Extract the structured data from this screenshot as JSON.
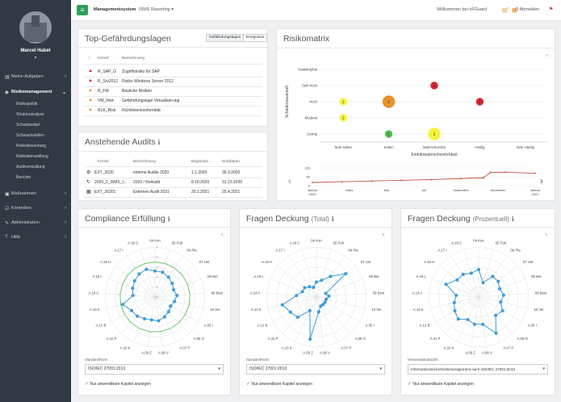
{
  "user": {
    "name": "Marcel Habel"
  },
  "nav": {
    "items": [
      {
        "label": "Meine Aufgaben",
        "icon": "inbox-icon"
      },
      {
        "label": "Risikomanagement",
        "icon": "shield-icon"
      },
      {
        "label": "Maßnahmen",
        "icon": "briefcase-icon"
      },
      {
        "label": "Kontrollen",
        "icon": "check-icon"
      },
      {
        "label": "Administration",
        "icon": "wrench-icon"
      },
      {
        "label": "Hilfe",
        "icon": "help-icon"
      }
    ],
    "sub": [
      "Risikopolitik",
      "Strukturanalyse",
      "Schutzbedarf",
      "Schwachstellen",
      "Risikobewertung",
      "Risikobehandlung",
      "Auditverwaltung",
      "Berichte"
    ]
  },
  "topbar": {
    "brand": "Managementsystem",
    "module": "ISMS Reporting",
    "welcome": "Willkommen bei riFGuard",
    "badge1": "8",
    "badge2": "1",
    "logout": "Abmelden"
  },
  "top_risks": {
    "title": "Top-Gefährdungslagen",
    "tabs": [
      "Gefährdungslagen",
      "Ereignisse"
    ],
    "col_short": "Kürzel",
    "col_name": "Bezeichnung",
    "rows": [
      {
        "short": "R_SAP_G",
        "name": "Zugriffsrisiko für SAP",
        "color": "#d9262b"
      },
      {
        "short": "R_Srv2012",
        "name": "Risiko Windows Server 2012",
        "color": "#d9262b"
      },
      {
        "short": "R_FM",
        "name": "Bauliche Risiken",
        "color": "#e8912a"
      },
      {
        "short": "VM_Risk",
        "name": "Gefährdungslage Virtualisierung",
        "color": "#e8912a"
      },
      {
        "short": "RLK_Risk",
        "name": "Richtlinienkonformität",
        "color": "#e8912a"
      }
    ]
  },
  "audits": {
    "title": "Anstehende Audits",
    "cols": [
      "Kürzel",
      "Bezeichnung",
      "Beginnda...",
      "Enddatum"
    ],
    "rows": [
      {
        "icon": "gears-icon",
        "short": "EXT_2020",
        "name": "externe Audits 2020",
        "start": "1.1.2020",
        "end": "30.3.2020"
      },
      {
        "icon": "refresh-icon",
        "short": "2020_2_ISMS_I...",
        "name": "2020 / ReAudit",
        "start": "8.10.2020",
        "end": "12.10.2020"
      },
      {
        "icon": "calendar-icon",
        "short": "EXT_20201",
        "name": "Externes Audit 2021",
        "start": "20.1.2021",
        "end": "25.4.2021"
      }
    ]
  },
  "matrix": {
    "title": "Risikomatrix",
    "y_title": "Schadensausmaß",
    "x_title": "Eintrittswahrscheinlichkeit",
    "y_levels": [
      "Katastrophal",
      "Sehr hoch",
      "Hoch",
      "Moderat",
      "Gering"
    ],
    "x_levels": [
      "Sehr selten",
      "Selten",
      "Wahrscheinlich",
      "Häufig",
      "Sehr Häufig"
    ],
    "bubbles": [
      {
        "x": 2,
        "y": 3,
        "label": "1",
        "color": "#d9262b",
        "size": 1
      },
      {
        "x": 0,
        "y": 2,
        "label": "1",
        "color": "#f5f23c",
        "size": 1
      },
      {
        "x": 1,
        "y": 2,
        "label": "2",
        "color": "#e8912a",
        "size": 2
      },
      {
        "x": 3,
        "y": 2,
        "label": "1",
        "color": "#d9262b",
        "size": 1
      },
      {
        "x": 0,
        "y": 1,
        "label": "1",
        "color": "#f5f23c",
        "size": 1
      },
      {
        "x": 1,
        "y": 0,
        "label": "1",
        "color": "#4cc04c",
        "size": 1
      },
      {
        "x": 2,
        "y": 0,
        "label": "2",
        "color": "#f5f23c",
        "size": 2
      }
    ],
    "timeline": {
      "y_ticks": [
        "100",
        "50",
        "0"
      ],
      "x_ticks": [
        "Januar 2020",
        "März",
        "Mai",
        "Juli",
        "September",
        "November",
        "Januar 2021"
      ],
      "points": [
        [
          0,
          18
        ],
        [
          0.8,
          22
        ],
        [
          1.6,
          26
        ],
        [
          2.4,
          30
        ],
        [
          3.2,
          34
        ],
        [
          4.0,
          40
        ],
        [
          4.6,
          44
        ],
        [
          4.8,
          75
        ],
        [
          5.2,
          76
        ],
        [
          6,
          70
        ]
      ]
    }
  },
  "radars": [
    {
      "title": "Compliance Erfüllung",
      "subtitle": "",
      "label": "Standard/Norm",
      "value": "ISO/IEC 27001:2013",
      "checkbox": "Nur anwendbare Kapitel anzeigen",
      "axes": [
        "04 Kon",
        "05 Füh",
        "06 Pla",
        "07 Unt",
        "08 Bet",
        "09 Bew",
        "10 Ver",
        "A.05 I",
        "A.06 O",
        "A.07 P",
        "A.08 V",
        "A.09 Z",
        "A.10 K",
        "A.11 P",
        "A.12 B",
        "A.13 K",
        "A.14 A",
        "A.15 L",
        "A.16 H",
        "A.17 I",
        "A.18 C"
      ],
      "scale_ticks": [
        "0",
        "1",
        "2",
        "3",
        "4",
        "5"
      ],
      "values": [
        2.6,
        2.6,
        2.4,
        2.2,
        2.0,
        2.2,
        2.0,
        1.8,
        2.0,
        2.2,
        2.4,
        2.3,
        2.4,
        2.6,
        2.7,
        3.3,
        2.2,
        2.4,
        2.6,
        2.8,
        2.9
      ],
      "target": 3.5
    },
    {
      "title": "Fragen Deckung",
      "subtitle": "(Total)",
      "label": "Standard/Norm",
      "value": "ISO/IEC 27001:2013",
      "checkbox": "Nur anwendbare Kapitel anzeigen",
      "axes": [
        "04 Kon",
        "05 Füh",
        "06 Pla",
        "07 Unt",
        "08 Bet",
        "09 Bew",
        "10 Ver",
        "A.05 I",
        "A.06 O",
        "A.07 P",
        "A.08 V",
        "A.09 Z",
        "A.10 K",
        "A.11 P",
        "A.12 B",
        "A.13 K",
        "A.14 A",
        "A.15 L",
        "A.16 H",
        "A.17 I",
        "A.18 C"
      ],
      "values": [
        0.3,
        0.35,
        0.5,
        0.75,
        0.2,
        0.25,
        0.2,
        0.2,
        0.2,
        0.2,
        0.3,
        0.85,
        0.3,
        0.55,
        0.6,
        0.7,
        0.4,
        0.3,
        0.3,
        0.25,
        0.2
      ]
    },
    {
      "title": "Fragen Deckung",
      "subtitle": "(Prozentuell)",
      "label": "Wissensstandsdarfe",
      "value": "Informationssicherheitsmanagement nach ISO/IEC 27001:2013",
      "checkbox": "Nur anwendbare Kapitel anzeigen",
      "axes": [
        "04 Kon",
        "05 Füh",
        "06 Pla",
        "07 Unt",
        "08 Bet",
        "09 Bew",
        "10 Ver",
        "A.05 I",
        "A.06 O",
        "A.07 P",
        "A.08 V",
        "A.09 Z",
        "A.10 K",
        "A.11 P",
        "A.12 B",
        "A.13 K",
        "A.14 A",
        "A.15 L",
        "A.16 H",
        "A.17 I",
        "A.18 C"
      ],
      "values": [
        0.55,
        0.3,
        0.5,
        0.5,
        0.45,
        0.5,
        0.45,
        0.55,
        0.5,
        0.8,
        0.55,
        0.55,
        0.5,
        0.6,
        0.55,
        0.5,
        0.45,
        0.7,
        0.55,
        0.55,
        0.5
      ]
    }
  ],
  "colors": {
    "accent": "#2ea05a",
    "sidebar": "#2f3a45",
    "series": "#3a9ad9",
    "target": "#6cc36c"
  }
}
